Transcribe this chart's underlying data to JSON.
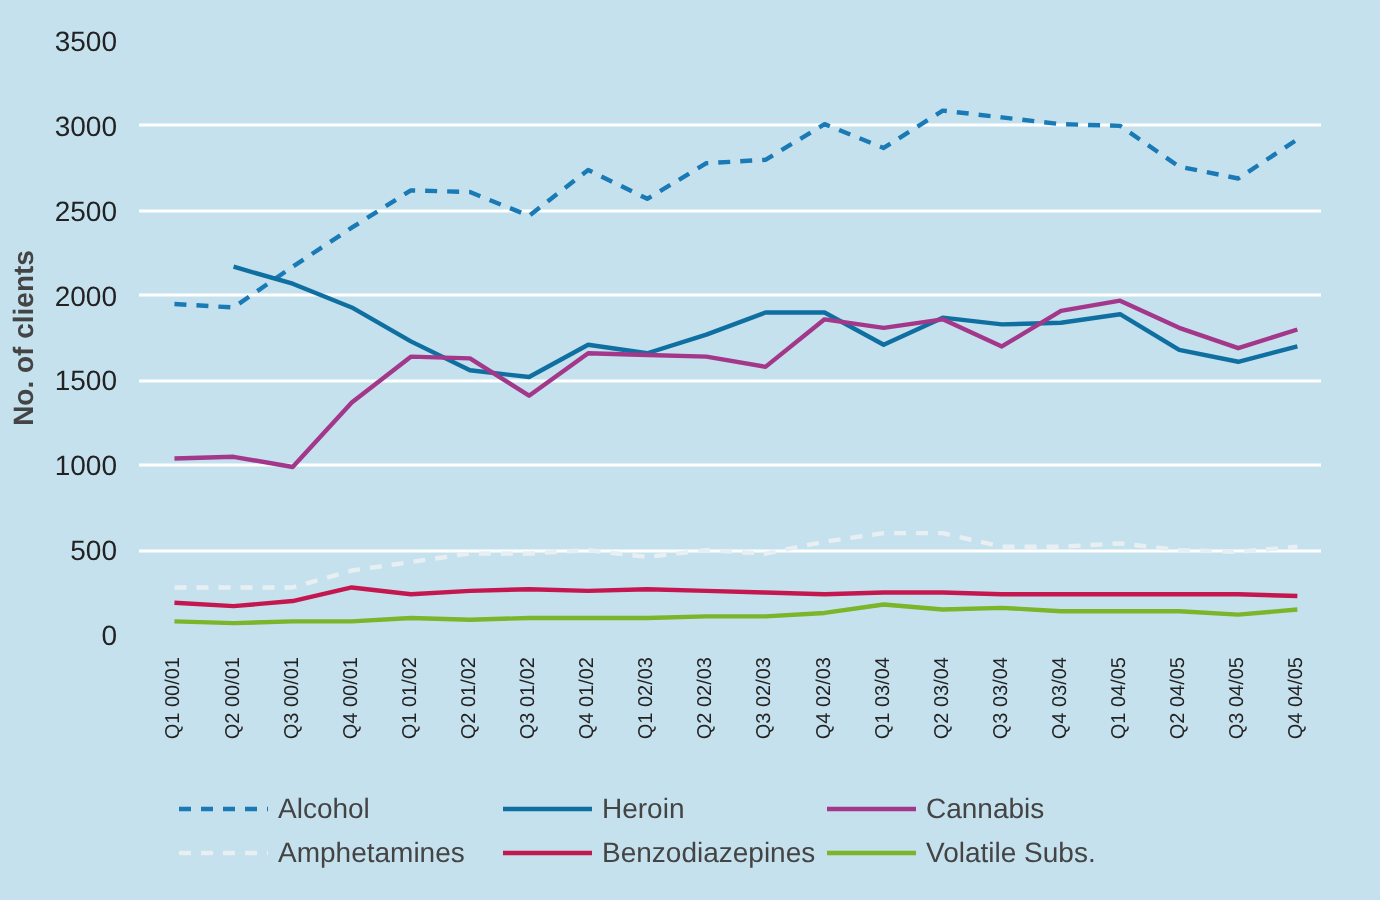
{
  "chart_data": {
    "type": "line",
    "ylabel": "No. of clients",
    "categories": [
      "Q1 00/01",
      "Q2 00/01",
      "Q3 00/01",
      "Q4 00/01",
      "Q1 01/02",
      "Q2 01/02",
      "Q3 01/02",
      "Q4 01/02",
      "Q1 02/03",
      "Q2 02/03",
      "Q3 02/03",
      "Q4 02/03",
      "Q1 03/04",
      "Q2 03/04",
      "Q3 03/04",
      "Q4 03/04",
      "Q1 04/05",
      "Q2 04/05",
      "Q3 04/05",
      "Q4 04/05"
    ],
    "series": [
      {
        "name": "Alcohol",
        "color": "#1a7ab5",
        "line_style": "dashed",
        "values": [
          1950,
          1930,
          2170,
          2400,
          2620,
          2610,
          2470,
          2740,
          2570,
          2780,
          2800,
          3010,
          2870,
          3090,
          3050,
          3010,
          3000,
          2760,
          2690,
          2920
        ]
      },
      {
        "name": "Heroin",
        "color": "#0f6fa0",
        "values": [
          null,
          2170,
          2070,
          1930,
          1730,
          1560,
          1520,
          1710,
          1660,
          1770,
          1900,
          1900,
          1710,
          1870,
          1830,
          1840,
          1890,
          1680,
          1610,
          1700
        ]
      },
      {
        "name": "Cannabis",
        "color": "#a3378a",
        "values": [
          1040,
          1050,
          990,
          1370,
          1640,
          1630,
          1410,
          1660,
          1650,
          1640,
          1580,
          1860,
          1810,
          1860,
          1700,
          1910,
          1970,
          1810,
          1690,
          1800
        ]
      },
      {
        "name": "Amphetamines",
        "color": "#e8eff3",
        "line_style": "dashed",
        "values": [
          280,
          280,
          280,
          380,
          430,
          480,
          480,
          500,
          460,
          500,
          480,
          550,
          600,
          600,
          520,
          520,
          540,
          500,
          490,
          520
        ]
      },
      {
        "name": "Benzodiazepines",
        "color": "#c4174f",
        "values": [
          190,
          170,
          200,
          280,
          240,
          260,
          270,
          260,
          270,
          260,
          250,
          240,
          250,
          250,
          240,
          240,
          240,
          240,
          240,
          230
        ]
      },
      {
        "name": "Volatile Subs.",
        "color": "#7ab52a",
        "values": [
          80,
          70,
          80,
          80,
          100,
          90,
          100,
          100,
          100,
          110,
          110,
          130,
          180,
          150,
          160,
          140,
          140,
          140,
          120,
          150
        ]
      }
    ],
    "ylim": [
      0,
      3500
    ],
    "yticks": [
      0,
      500,
      1000,
      1500,
      2000,
      2500,
      3000,
      3500
    ],
    "grid": "y",
    "legend": "bottom",
    "line_style": "solid"
  }
}
